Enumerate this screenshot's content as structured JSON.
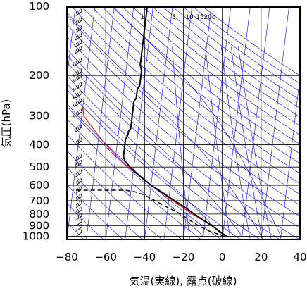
{
  "chart_data": {
    "type": "line",
    "subtype": "skew-T log-P thermodynamic diagram",
    "xlabel": "気温(実線), 露点(破線)",
    "ylabel": "気圧(hPa)",
    "x_ticks": [
      "−80",
      "−60",
      "−40",
      "−20",
      "0",
      "20",
      "40"
    ],
    "x_tick_values": [
      -80,
      -60,
      -40,
      -20,
      0,
      20,
      40
    ],
    "xlim": [
      -80,
      40
    ],
    "y_scale": "log",
    "ylim": [
      1030,
      100
    ],
    "y_ticks": [
      "100",
      "200",
      "300",
      "400",
      "500",
      "600",
      "700",
      "800",
      "900",
      "1000"
    ],
    "y_tick_values": [
      100,
      200,
      300,
      400,
      500,
      600,
      700,
      800,
      900,
      1000
    ],
    "mixing_ratio_labels": [
      "1",
      "5",
      "10",
      "15",
      "20g"
    ],
    "mixing_ratio_values": [
      1,
      5,
      10,
      15,
      20
    ],
    "series": [],
    "temperature": {
      "p": [
        1000,
        975,
        950,
        925,
        900,
        850,
        800,
        750,
        700,
        650,
        600,
        550,
        500,
        470,
        450,
        420,
        400,
        380,
        360,
        350,
        340,
        330,
        320,
        300,
        280,
        260,
        250,
        240,
        230,
        220,
        210,
        200,
        190,
        180,
        170,
        160,
        150,
        140,
        130,
        120,
        110,
        100
      ],
      "t": [
        2,
        0,
        -2,
        -4,
        -6,
        -11,
        -16,
        -21,
        -27,
        -33,
        -40,
        -46,
        -52,
        -55,
        -56,
        -56,
        -56,
        -56,
        -55,
        -55,
        -54,
        -54,
        -54,
        -54,
        -54,
        -54,
        -53,
        -53,
        -53,
        -52,
        -52,
        -52,
        -52,
        -53,
        -53,
        -53,
        -53,
        -53,
        -53,
        -53,
        -53,
        -53
      ]
    },
    "dewpoint": {
      "p": [
        1000,
        975,
        950,
        925,
        900,
        850,
        800,
        750,
        700,
        660,
        640,
        630,
        630
      ],
      "td": [
        1,
        -3,
        -7,
        -10,
        -13,
        -18,
        -23,
        -30,
        -37,
        -43,
        -48,
        -53,
        -80
      ]
    },
    "parcel": {
      "p": [
        1000,
        900,
        800,
        700,
        600,
        500,
        400,
        300,
        270
      ],
      "t": [
        2,
        -6,
        -17,
        -28,
        -40,
        -53,
        -66,
        -79,
        -80
      ]
    },
    "isotherm_spacing": 10,
    "dry_adiabat_thetas": [
      200,
      210,
      220,
      230,
      240,
      250,
      260,
      270,
      280,
      290,
      300,
      310,
      320,
      330,
      340,
      350,
      360,
      370,
      380,
      390,
      400,
      410,
      420,
      430,
      440,
      450,
      460,
      470,
      480
    ],
    "moist_adiabat_thetaw": [
      -10,
      0,
      10,
      20,
      30
    ],
    "wind_barbs": {
      "p": [
        1000,
        950,
        900,
        850,
        800,
        750,
        700,
        650,
        600,
        550,
        500,
        470,
        400,
        350,
        300,
        270,
        250,
        230,
        210,
        200,
        180,
        160,
        150,
        140,
        130,
        120,
        110,
        100
      ],
      "speed_kt": [
        10,
        15,
        20,
        30,
        40,
        40,
        35,
        35,
        35,
        40,
        40,
        45,
        50,
        50,
        55,
        60,
        60,
        60,
        65,
        65,
        55,
        50,
        50,
        45,
        40,
        40,
        35,
        30
      ],
      "dir_deg": [
        180,
        200,
        220,
        230,
        240,
        250,
        250,
        250,
        255,
        260,
        260,
        260,
        260,
        265,
        265,
        265,
        265,
        265,
        265,
        265,
        265,
        265,
        265,
        265,
        265,
        265,
        265,
        265
      ]
    },
    "colors": {
      "temperature": "#000000",
      "dewpoint": "#000000",
      "parcel": "#ff0000",
      "guides": "#0000ff",
      "grid": "#000000"
    },
    "grid": true,
    "legend": "none"
  }
}
